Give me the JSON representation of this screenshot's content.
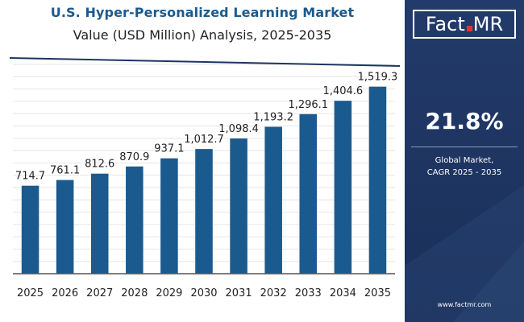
{
  "header": {
    "title": "U.S. Hyper-Personalized Learning Market",
    "subtitle": "Value (USD Million) Analysis, 2025-2035"
  },
  "brand": {
    "logo_left": "Fact",
    "logo_right": "MR",
    "website": "www.factmr.com"
  },
  "cagr": {
    "value": "21.8%",
    "label_line1": "Global Market,",
    "label_line2": "CAGR 2025 - 2035"
  },
  "colors": {
    "bar": "#1b5a8e",
    "panel": "#1d3462",
    "logo_accent": "#e8332a"
  },
  "chart_data": {
    "type": "bar",
    "categories": [
      "2025",
      "2026",
      "2027",
      "2028",
      "2029",
      "2030",
      "2031",
      "2032",
      "2033",
      "2034",
      "2035"
    ],
    "values": [
      714.7,
      761.1,
      812.6,
      870.9,
      937.1,
      1012.7,
      1098.4,
      1193.2,
      1296.1,
      1404.6,
      1519.3
    ],
    "value_labels": [
      "714.7",
      "761.1",
      "812.6",
      "870.9",
      "937.1",
      "1,012.7",
      "1,098.4",
      "1,193.2",
      "1,296.1",
      "1,404.6",
      "1,519.3"
    ],
    "ylim": [
      0,
      1700
    ],
    "grid": "horizontal",
    "title": "U.S. Hyper-Personalized Learning Market",
    "subtitle": "Value (USD Million) Analysis, 2025-2035",
    "xlabel": "",
    "ylabel": ""
  }
}
